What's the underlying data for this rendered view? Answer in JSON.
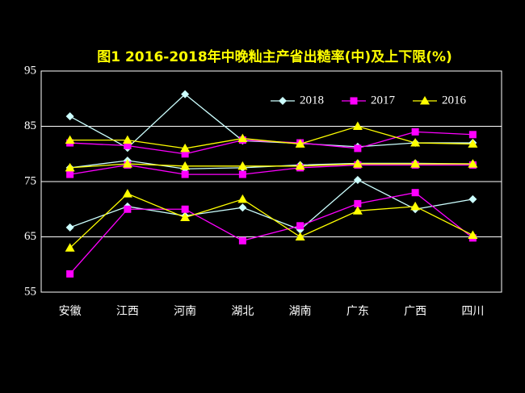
{
  "chart_data": {
    "type": "line",
    "title": "图1  2016-2018年中晚籼主产省出糙率(中)及上下限(%)",
    "categories": [
      "安徽",
      "江西",
      "河南",
      "湖北",
      "湖南",
      "广东",
      "广西",
      "四川"
    ],
    "ylim": [
      55,
      95
    ],
    "yticks": [
      55,
      65,
      75,
      85,
      95
    ],
    "grid": true,
    "series": [
      {
        "name": "2018",
        "color": "#ccffff",
        "marker": "diamond",
        "lines": [
          [
            86.8,
            81.1,
            90.8,
            82.4,
            81.9,
            81.3,
            82,
            82
          ],
          [
            77.5,
            78.8,
            77.3,
            77.5,
            78,
            78.3,
            78.3,
            78.2
          ],
          [
            66.7,
            70.5,
            68.8,
            70.3,
            66.3,
            75.3,
            70,
            71.8
          ]
        ]
      },
      {
        "name": "2017",
        "color": "#ff00ff",
        "marker": "square",
        "lines": [
          [
            82,
            81.5,
            80,
            82.5,
            82,
            81,
            84,
            83.5
          ],
          [
            76.3,
            78,
            76.3,
            76.3,
            77.5,
            78,
            78,
            78
          ],
          [
            58.3,
            70,
            70,
            64.3,
            67,
            71,
            73,
            64.8
          ]
        ]
      },
      {
        "name": "2016",
        "color": "#ffff00",
        "marker": "triangle",
        "lines": [
          [
            82.5,
            82.5,
            81,
            82.8,
            81.8,
            85,
            82,
            81.8
          ],
          [
            77.5,
            78.2,
            77.8,
            77.8,
            77.8,
            78.2,
            78.2,
            78.2
          ],
          [
            63,
            72.8,
            68.5,
            71.8,
            65,
            69.7,
            70.5,
            65.3
          ]
        ]
      }
    ]
  }
}
